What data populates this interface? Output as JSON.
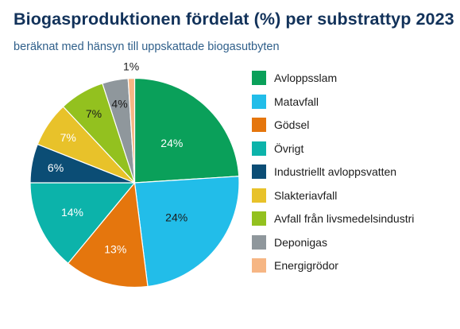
{
  "title": "Biogasproduktionen fördelat (%) per substrattyp 2023",
  "subtitle": "beräknat med hänsyn till uppskattade biogasutbyten",
  "chart_data": {
    "type": "pie",
    "title": "Biogasproduktionen fördelat (%) per substrattyp 2023",
    "subtitle": "beräknat med hänsyn till uppskattade biogasutbyten",
    "start_angle": "12 o'clock",
    "direction": "clockwise",
    "legend_position": "right",
    "slices": [
      {
        "label": "Avloppsslam",
        "value": 24,
        "display": "24%",
        "color": "#0aa05a",
        "text_color": "#ffffff"
      },
      {
        "label": "Matavfall",
        "value": 24,
        "display": "24%",
        "color": "#22bde9",
        "text_color": "#1b1b1b"
      },
      {
        "label": "Gödsel",
        "value": 13,
        "display": "13%",
        "color": "#e5760d",
        "text_color": "#ffffff"
      },
      {
        "label": "Övrigt",
        "value": 14,
        "display": "14%",
        "color": "#0cb3aa",
        "text_color": "#ffffff"
      },
      {
        "label": "Industriellt avloppsvatten",
        "value": 6,
        "display": "6%",
        "color": "#0b4d75",
        "text_color": "#ffffff"
      },
      {
        "label": "Slakteriavfall",
        "value": 7,
        "display": "7%",
        "color": "#e8c22a",
        "text_color": "#ffffff"
      },
      {
        "label": "Avfall från livsmedelsindustri",
        "value": 7,
        "display": "7%",
        "color": "#93c11f",
        "text_color": "#1b1b1b"
      },
      {
        "label": "Deponigas",
        "value": 4,
        "display": "4%",
        "color": "#8f979c",
        "text_color": "#1b1b1b"
      },
      {
        "label": "Energigrödor",
        "value": 1,
        "display": "1%",
        "color": "#f6b684",
        "text_color": "#1b1b1b"
      }
    ]
  }
}
